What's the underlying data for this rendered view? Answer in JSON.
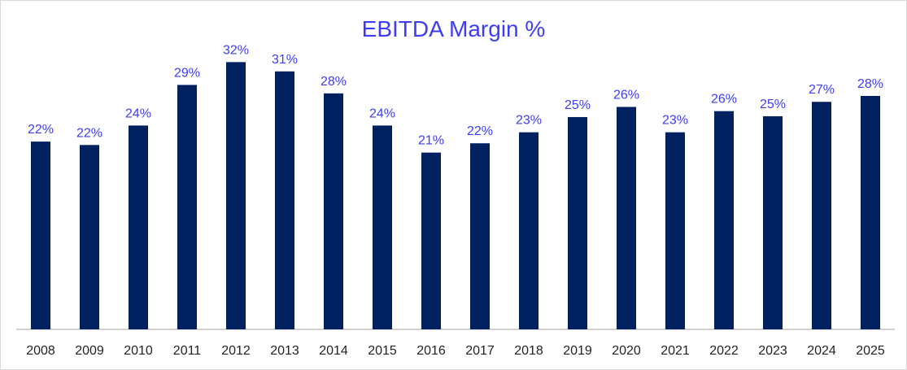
{
  "chart_data": {
    "type": "bar",
    "title": "EBITDA Margin %",
    "xlabel": "",
    "ylabel": "",
    "categories": [
      "2008",
      "2009",
      "2010",
      "2011",
      "2012",
      "2013",
      "2014",
      "2015",
      "2016",
      "2017",
      "2018",
      "2019",
      "2020",
      "2021",
      "2022",
      "2023",
      "2024",
      "2025"
    ],
    "values": [
      22.2,
      21.8,
      24.1,
      28.9,
      31.6,
      30.5,
      27.9,
      24.1,
      20.9,
      22.0,
      23.3,
      25.1,
      26.3,
      23.3,
      25.8,
      25.2,
      26.9,
      27.6
    ],
    "data_labels": [
      "22%",
      "22%",
      "24%",
      "29%",
      "32%",
      "31%",
      "28%",
      "24%",
      "21%",
      "22%",
      "23%",
      "25%",
      "26%",
      "23%",
      "26%",
      "25%",
      "27%",
      "28%"
    ],
    "ylim": [
      0,
      34
    ],
    "grid": false,
    "legend": "none",
    "colors": {
      "bar": "#002060",
      "title": "#3d3df5",
      "data_label": "#3d3df5"
    }
  }
}
